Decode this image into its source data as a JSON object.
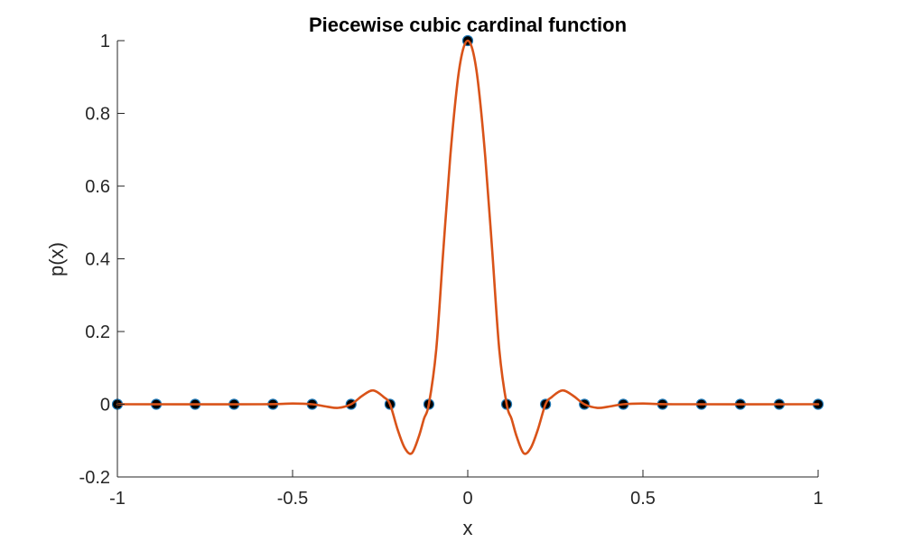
{
  "chart_data": {
    "type": "line",
    "title": "Piecewise cubic cardinal function",
    "xlabel": "x",
    "ylabel": "p(x)",
    "xlim": [
      -1,
      1
    ],
    "ylim": [
      -0.2,
      1
    ],
    "xticks": [
      -1,
      -0.5,
      0,
      0.5,
      1
    ],
    "xtick_labels": [
      "-1",
      "-0.5",
      "0",
      "0.5",
      "1"
    ],
    "yticks": [
      -0.2,
      0,
      0.2,
      0.4,
      0.6,
      0.8,
      1
    ],
    "ytick_labels": [
      "-0.2",
      "0",
      "0.2",
      "0.4",
      "0.6",
      "0.8",
      "1"
    ],
    "grid": false,
    "legend": "none",
    "series": [
      {
        "kind": "markers",
        "color": "#000000",
        "edge_color": "#1f77b4",
        "x": [
          -1,
          -0.889,
          -0.778,
          -0.667,
          -0.556,
          -0.444,
          -0.333,
          -0.222,
          -0.111,
          0,
          0.111,
          0.222,
          0.333,
          0.444,
          0.556,
          0.667,
          0.778,
          0.889,
          1
        ],
        "y": [
          0,
          0,
          0,
          0,
          0,
          0,
          0,
          0,
          0,
          1,
          0,
          0,
          0,
          0,
          0,
          0,
          0,
          0,
          0
        ]
      },
      {
        "kind": "line",
        "color": "#D95319",
        "x": [
          -1,
          -0.6,
          -0.5,
          -0.444,
          -0.4,
          -0.37,
          -0.333,
          -0.3,
          -0.27,
          -0.24,
          -0.222,
          -0.2,
          -0.18,
          -0.16,
          -0.14,
          -0.125,
          -0.111,
          -0.09,
          -0.07,
          -0.05,
          -0.03,
          -0.015,
          0,
          0.015,
          0.03,
          0.05,
          0.07,
          0.09,
          0.111,
          0.125,
          0.14,
          0.16,
          0.18,
          0.2,
          0.222,
          0.24,
          0.27,
          0.3,
          0.333,
          0.37,
          0.4,
          0.444,
          0.5,
          0.6,
          1
        ],
        "y": [
          0,
          0,
          0.002,
          0,
          -0.007,
          -0.01,
          0,
          0.024,
          0.038,
          0.02,
          0,
          -0.07,
          -0.12,
          -0.135,
          -0.09,
          -0.04,
          0,
          0.15,
          0.42,
          0.68,
          0.88,
          0.97,
          1,
          0.97,
          0.88,
          0.68,
          0.42,
          0.15,
          0,
          -0.04,
          -0.09,
          -0.135,
          -0.12,
          -0.07,
          0,
          0.02,
          0.038,
          0.024,
          0,
          -0.01,
          -0.007,
          0,
          0.002,
          0,
          0
        ]
      }
    ]
  }
}
